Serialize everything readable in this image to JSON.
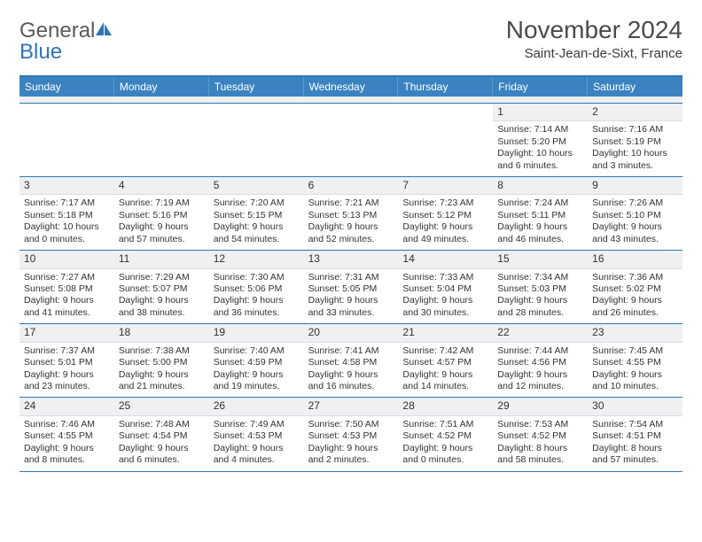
{
  "logo": {
    "word1": "General",
    "word2": "Blue"
  },
  "title": "November 2024",
  "subtitle": "Saint-Jean-de-Sixt, France",
  "colors": {
    "brand_blue": "#3b83c0",
    "rule_blue": "#2f76b8",
    "daynum_bg": "#eef0f2",
    "text": "#333333",
    "logo_gray": "#5a5a5a"
  },
  "weekdays": [
    "Sunday",
    "Monday",
    "Tuesday",
    "Wednesday",
    "Thursday",
    "Friday",
    "Saturday"
  ],
  "weeks": [
    [
      null,
      null,
      null,
      null,
      null,
      {
        "n": "1",
        "sr": "Sunrise: 7:14 AM",
        "ss": "Sunset: 5:20 PM",
        "d1": "Daylight: 10 hours",
        "d2": "and 6 minutes."
      },
      {
        "n": "2",
        "sr": "Sunrise: 7:16 AM",
        "ss": "Sunset: 5:19 PM",
        "d1": "Daylight: 10 hours",
        "d2": "and 3 minutes."
      }
    ],
    [
      {
        "n": "3",
        "sr": "Sunrise: 7:17 AM",
        "ss": "Sunset: 5:18 PM",
        "d1": "Daylight: 10 hours",
        "d2": "and 0 minutes."
      },
      {
        "n": "4",
        "sr": "Sunrise: 7:19 AM",
        "ss": "Sunset: 5:16 PM",
        "d1": "Daylight: 9 hours",
        "d2": "and 57 minutes."
      },
      {
        "n": "5",
        "sr": "Sunrise: 7:20 AM",
        "ss": "Sunset: 5:15 PM",
        "d1": "Daylight: 9 hours",
        "d2": "and 54 minutes."
      },
      {
        "n": "6",
        "sr": "Sunrise: 7:21 AM",
        "ss": "Sunset: 5:13 PM",
        "d1": "Daylight: 9 hours",
        "d2": "and 52 minutes."
      },
      {
        "n": "7",
        "sr": "Sunrise: 7:23 AM",
        "ss": "Sunset: 5:12 PM",
        "d1": "Daylight: 9 hours",
        "d2": "and 49 minutes."
      },
      {
        "n": "8",
        "sr": "Sunrise: 7:24 AM",
        "ss": "Sunset: 5:11 PM",
        "d1": "Daylight: 9 hours",
        "d2": "and 46 minutes."
      },
      {
        "n": "9",
        "sr": "Sunrise: 7:26 AM",
        "ss": "Sunset: 5:10 PM",
        "d1": "Daylight: 9 hours",
        "d2": "and 43 minutes."
      }
    ],
    [
      {
        "n": "10",
        "sr": "Sunrise: 7:27 AM",
        "ss": "Sunset: 5:08 PM",
        "d1": "Daylight: 9 hours",
        "d2": "and 41 minutes."
      },
      {
        "n": "11",
        "sr": "Sunrise: 7:29 AM",
        "ss": "Sunset: 5:07 PM",
        "d1": "Daylight: 9 hours",
        "d2": "and 38 minutes."
      },
      {
        "n": "12",
        "sr": "Sunrise: 7:30 AM",
        "ss": "Sunset: 5:06 PM",
        "d1": "Daylight: 9 hours",
        "d2": "and 36 minutes."
      },
      {
        "n": "13",
        "sr": "Sunrise: 7:31 AM",
        "ss": "Sunset: 5:05 PM",
        "d1": "Daylight: 9 hours",
        "d2": "and 33 minutes."
      },
      {
        "n": "14",
        "sr": "Sunrise: 7:33 AM",
        "ss": "Sunset: 5:04 PM",
        "d1": "Daylight: 9 hours",
        "d2": "and 30 minutes."
      },
      {
        "n": "15",
        "sr": "Sunrise: 7:34 AM",
        "ss": "Sunset: 5:03 PM",
        "d1": "Daylight: 9 hours",
        "d2": "and 28 minutes."
      },
      {
        "n": "16",
        "sr": "Sunrise: 7:36 AM",
        "ss": "Sunset: 5:02 PM",
        "d1": "Daylight: 9 hours",
        "d2": "and 26 minutes."
      }
    ],
    [
      {
        "n": "17",
        "sr": "Sunrise: 7:37 AM",
        "ss": "Sunset: 5:01 PM",
        "d1": "Daylight: 9 hours",
        "d2": "and 23 minutes."
      },
      {
        "n": "18",
        "sr": "Sunrise: 7:38 AM",
        "ss": "Sunset: 5:00 PM",
        "d1": "Daylight: 9 hours",
        "d2": "and 21 minutes."
      },
      {
        "n": "19",
        "sr": "Sunrise: 7:40 AM",
        "ss": "Sunset: 4:59 PM",
        "d1": "Daylight: 9 hours",
        "d2": "and 19 minutes."
      },
      {
        "n": "20",
        "sr": "Sunrise: 7:41 AM",
        "ss": "Sunset: 4:58 PM",
        "d1": "Daylight: 9 hours",
        "d2": "and 16 minutes."
      },
      {
        "n": "21",
        "sr": "Sunrise: 7:42 AM",
        "ss": "Sunset: 4:57 PM",
        "d1": "Daylight: 9 hours",
        "d2": "and 14 minutes."
      },
      {
        "n": "22",
        "sr": "Sunrise: 7:44 AM",
        "ss": "Sunset: 4:56 PM",
        "d1": "Daylight: 9 hours",
        "d2": "and 12 minutes."
      },
      {
        "n": "23",
        "sr": "Sunrise: 7:45 AM",
        "ss": "Sunset: 4:55 PM",
        "d1": "Daylight: 9 hours",
        "d2": "and 10 minutes."
      }
    ],
    [
      {
        "n": "24",
        "sr": "Sunrise: 7:46 AM",
        "ss": "Sunset: 4:55 PM",
        "d1": "Daylight: 9 hours",
        "d2": "and 8 minutes."
      },
      {
        "n": "25",
        "sr": "Sunrise: 7:48 AM",
        "ss": "Sunset: 4:54 PM",
        "d1": "Daylight: 9 hours",
        "d2": "and 6 minutes."
      },
      {
        "n": "26",
        "sr": "Sunrise: 7:49 AM",
        "ss": "Sunset: 4:53 PM",
        "d1": "Daylight: 9 hours",
        "d2": "and 4 minutes."
      },
      {
        "n": "27",
        "sr": "Sunrise: 7:50 AM",
        "ss": "Sunset: 4:53 PM",
        "d1": "Daylight: 9 hours",
        "d2": "and 2 minutes."
      },
      {
        "n": "28",
        "sr": "Sunrise: 7:51 AM",
        "ss": "Sunset: 4:52 PM",
        "d1": "Daylight: 9 hours",
        "d2": "and 0 minutes."
      },
      {
        "n": "29",
        "sr": "Sunrise: 7:53 AM",
        "ss": "Sunset: 4:52 PM",
        "d1": "Daylight: 8 hours",
        "d2": "and 58 minutes."
      },
      {
        "n": "30",
        "sr": "Sunrise: 7:54 AM",
        "ss": "Sunset: 4:51 PM",
        "d1": "Daylight: 8 hours",
        "d2": "and 57 minutes."
      }
    ]
  ]
}
